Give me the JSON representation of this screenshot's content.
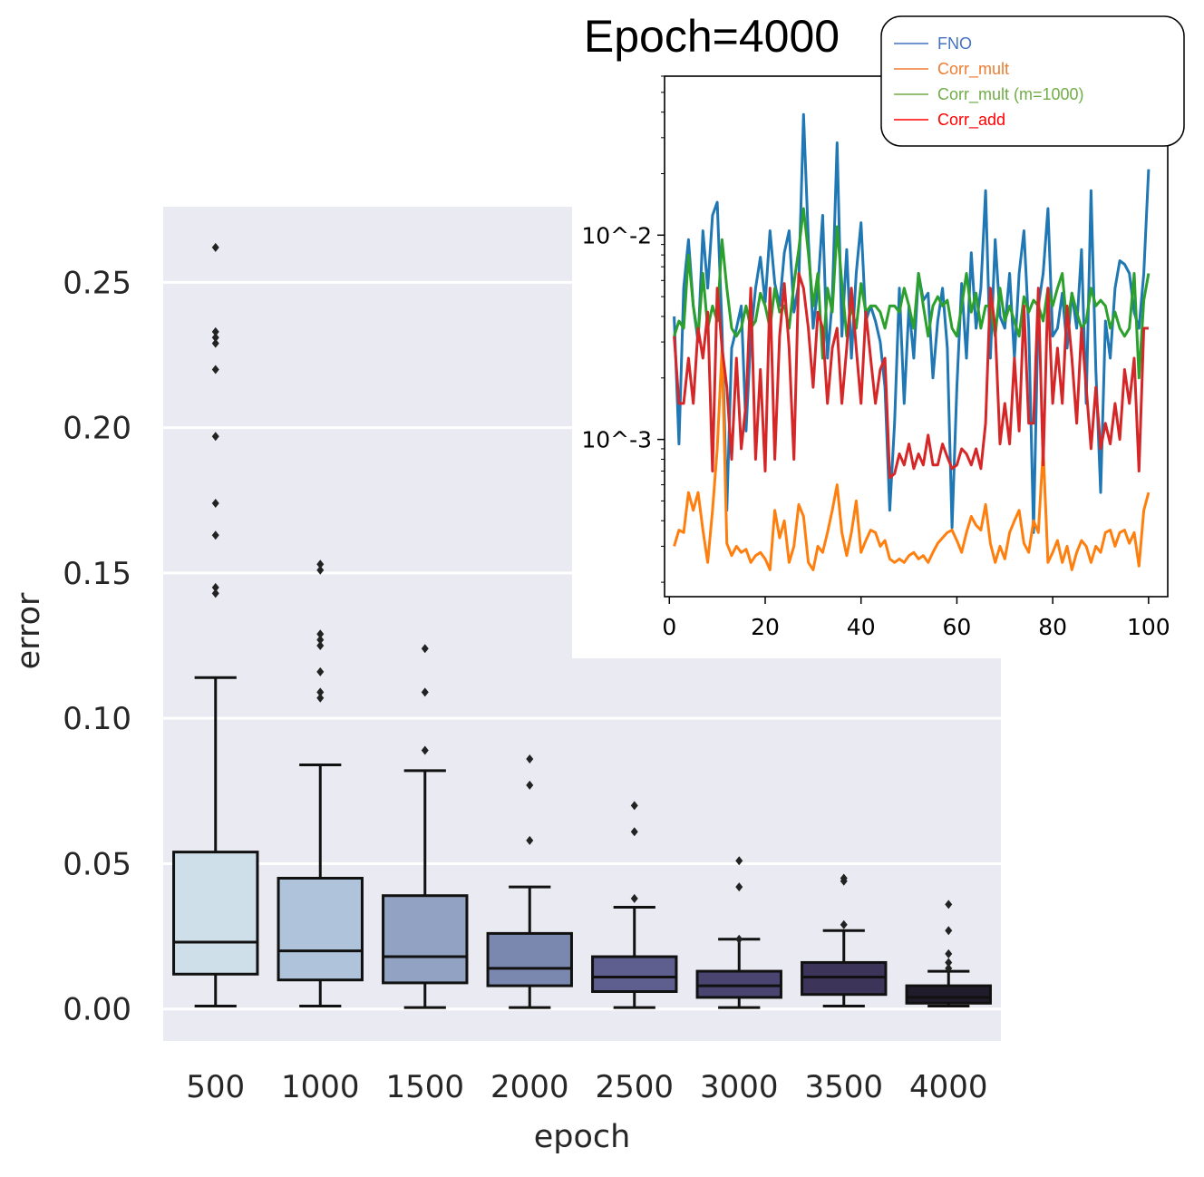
{
  "chart_data": [
    {
      "type": "box",
      "xlabel": "epoch",
      "ylabel": "error",
      "categories": [
        "500",
        "1000",
        "1500",
        "2000",
        "2500",
        "3000",
        "3500",
        "4000"
      ],
      "yticks": [
        "0.00",
        "0.05",
        "0.10",
        "0.15",
        "0.20",
        "0.25"
      ],
      "ylim": [
        -0.011,
        0.276
      ],
      "grid": true,
      "palette": [
        "#cfdfea",
        "#afc4da",
        "#92a2c2",
        "#7a87af",
        "#5e5f8f",
        "#494570",
        "#3d3559",
        "#201c2b"
      ],
      "boxes": [
        {
          "whislo": 0.001,
          "q1": 0.012,
          "med": 0.023,
          "q3": 0.054,
          "whishi": 0.114,
          "fliers": [
            0.143,
            0.145,
            0.163,
            0.174,
            0.197,
            0.22,
            0.229,
            0.231,
            0.233,
            0.262
          ]
        },
        {
          "whislo": 0.001,
          "q1": 0.01,
          "med": 0.02,
          "q3": 0.045,
          "whishi": 0.084,
          "fliers": [
            0.107,
            0.109,
            0.116,
            0.125,
            0.127,
            0.129,
            0.151,
            0.153
          ]
        },
        {
          "whislo": 0.0005,
          "q1": 0.009,
          "med": 0.018,
          "q3": 0.039,
          "whishi": 0.082,
          "fliers": [
            0.089,
            0.109,
            0.124
          ]
        },
        {
          "whislo": 0.0005,
          "q1": 0.008,
          "med": 0.014,
          "q3": 0.026,
          "whishi": 0.042,
          "fliers": [
            0.058,
            0.077,
            0.086
          ]
        },
        {
          "whislo": 0.0005,
          "q1": 0.006,
          "med": 0.011,
          "q3": 0.018,
          "whishi": 0.035,
          "fliers": [
            0.038,
            0.061,
            0.07
          ]
        },
        {
          "whislo": 0.0005,
          "q1": 0.004,
          "med": 0.008,
          "q3": 0.013,
          "whishi": 0.024,
          "fliers": [
            0.024,
            0.042,
            0.051
          ]
        },
        {
          "whislo": 0.001,
          "q1": 0.005,
          "med": 0.011,
          "q3": 0.016,
          "whishi": 0.027,
          "fliers": [
            0.029,
            0.044,
            0.045
          ]
        },
        {
          "whislo": 0.001,
          "q1": 0.002,
          "med": 0.004,
          "q3": 0.008,
          "whishi": 0.013,
          "fliers": [
            0.014,
            0.016,
            0.019,
            0.027,
            0.036
          ]
        }
      ]
    },
    {
      "type": "line",
      "title": "Epoch=4000",
      "yscale": "log",
      "xlim": [
        -1,
        104
      ],
      "ylim": [
        0.00017,
        0.06
      ],
      "xticks": [
        "0",
        "20",
        "40",
        "60",
        "80",
        "100"
      ],
      "yticks": [
        "10^-3",
        "10^-2"
      ],
      "legend_position": "top-right",
      "series": [
        {
          "name": "FNO",
          "color": "#1f77b4",
          "legend_text_color": "#4472c4",
          "x": [
            1,
            2,
            3,
            4,
            5,
            6,
            7,
            8,
            9,
            10,
            11,
            12,
            13,
            14,
            15,
            16,
            17,
            18,
            19,
            20,
            21,
            22,
            23,
            24,
            25,
            26,
            27,
            28,
            29,
            30,
            31,
            32,
            33,
            34,
            35,
            36,
            37,
            38,
            39,
            40,
            41,
            42,
            43,
            44,
            45,
            46,
            47,
            48,
            49,
            50,
            51,
            52,
            53,
            54,
            55,
            56,
            57,
            58,
            59,
            60,
            61,
            62,
            63,
            64,
            65,
            66,
            67,
            68,
            69,
            70,
            71,
            72,
            73,
            74,
            75,
            76,
            77,
            78,
            79,
            80,
            81,
            82,
            83,
            84,
            85,
            86,
            87,
            88,
            89,
            90,
            91,
            92,
            93,
            94,
            95,
            96,
            97,
            98,
            99,
            100
          ],
          "y": [
            0.004,
            0.00095,
            0.0055,
            0.0095,
            0.0045,
            0.003,
            0.0105,
            0.0055,
            0.0125,
            0.0145,
            0.0035,
            0.00045,
            0.0028,
            0.0035,
            0.0045,
            0.0011,
            0.0032,
            0.0055,
            0.0078,
            0.0047,
            0.0105,
            0.0058,
            0.0045,
            0.0082,
            0.0105,
            0.0042,
            0.0058,
            0.039,
            0.0095,
            0.0035,
            0.0055,
            0.0125,
            0.0025,
            0.0048,
            0.0283,
            0.0032,
            0.0085,
            0.0025,
            0.0065,
            0.0115,
            0.0038,
            0.0045,
            0.0038,
            0.003,
            0.0018,
            0.00045,
            0.0012,
            0.0055,
            0.0015,
            0.0045,
            0.0025,
            0.0065,
            0.0048,
            0.0052,
            0.002,
            0.0038,
            0.0055,
            0.0028,
            0.00037,
            0.0018,
            0.0058,
            0.0025,
            0.0082,
            0.0035,
            0.0055,
            0.0165,
            0.0025,
            0.0095,
            0.004,
            0.0035,
            0.0065,
            0.0025,
            0.0065,
            0.0105,
            0.0035,
            0.00035,
            0.0045,
            0.0065,
            0.0135,
            0.0032,
            0.0035,
            0.0052,
            0.0028,
            0.0052,
            0.0035,
            0.0085,
            0.0015,
            0.0165,
            0.0022,
            0.00055,
            0.0038,
            0.0025,
            0.0055,
            0.0075,
            0.0072,
            0.0065,
            0.0042,
            0.0035,
            0.0065,
            0.021
          ]
        },
        {
          "name": "Corr_mult",
          "color": "#ff7f0e",
          "legend_text_color": "#ed7d31",
          "x": [
            1,
            2,
            3,
            4,
            5,
            6,
            7,
            8,
            9,
            10,
            11,
            12,
            13,
            14,
            15,
            16,
            17,
            18,
            19,
            20,
            21,
            22,
            23,
            24,
            25,
            26,
            27,
            28,
            29,
            30,
            31,
            32,
            33,
            34,
            35,
            36,
            37,
            38,
            39,
            40,
            41,
            42,
            43,
            44,
            45,
            46,
            47,
            48,
            49,
            50,
            51,
            52,
            53,
            54,
            55,
            56,
            57,
            58,
            59,
            60,
            61,
            62,
            63,
            64,
            65,
            66,
            67,
            68,
            69,
            70,
            71,
            72,
            73,
            74,
            75,
            76,
            77,
            78,
            79,
            80,
            81,
            82,
            83,
            84,
            85,
            86,
            87,
            88,
            89,
            90,
            91,
            92,
            93,
            94,
            95,
            96,
            97,
            98,
            99,
            100
          ],
          "y": [
            0.0003,
            0.00036,
            0.00035,
            0.00055,
            0.00045,
            0.00055,
            0.00036,
            0.00025,
            0.00045,
            0.0009,
            0.0028,
            0.00031,
            0.00027,
            0.0003,
            0.00028,
            0.00029,
            0.00025,
            0.00027,
            0.00028,
            0.00026,
            0.00023,
            0.00045,
            0.00033,
            0.0004,
            0.00025,
            0.0003,
            0.00048,
            0.00042,
            0.00025,
            0.00023,
            0.0003,
            0.00028,
            0.00035,
            0.00045,
            0.0006,
            0.00035,
            0.00027,
            0.00035,
            0.0005,
            0.00028,
            0.00032,
            0.00036,
            0.00035,
            0.0003,
            0.00032,
            0.00026,
            0.00025,
            0.00026,
            0.00025,
            0.00027,
            0.00028,
            0.00026,
            0.00027,
            0.00025,
            0.00028,
            0.00031,
            0.00033,
            0.00035,
            0.00036,
            0.00032,
            0.00028,
            0.00035,
            0.00042,
            0.00038,
            0.00036,
            0.00048,
            0.00031,
            0.00025,
            0.0003,
            0.00026,
            0.00035,
            0.0004,
            0.00045,
            0.00031,
            0.00028,
            0.0004,
            0.00035,
            0.0009,
            0.00025,
            0.00028,
            0.00032,
            0.00025,
            0.0003,
            0.00023,
            0.00028,
            0.00032,
            0.0003,
            0.00025,
            0.0003,
            0.00028,
            0.00035,
            0.00036,
            0.0003,
            0.00035,
            0.00036,
            0.00031,
            0.00035,
            0.00024,
            0.00045,
            0.00055
          ]
        },
        {
          "name": "Corr_mult (m=1000)",
          "color": "#2ca02c",
          "legend_text_color": "#70ad47",
          "x": [
            1,
            2,
            3,
            4,
            5,
            6,
            7,
            8,
            9,
            10,
            11,
            12,
            13,
            14,
            15,
            16,
            17,
            18,
            19,
            20,
            21,
            22,
            23,
            24,
            25,
            26,
            27,
            28,
            29,
            30,
            31,
            32,
            33,
            34,
            35,
            36,
            37,
            38,
            39,
            40,
            41,
            42,
            43,
            44,
            45,
            46,
            47,
            48,
            49,
            50,
            51,
            52,
            53,
            54,
            55,
            56,
            57,
            58,
            59,
            60,
            61,
            62,
            63,
            64,
            65,
            66,
            67,
            68,
            69,
            70,
            71,
            72,
            73,
            74,
            75,
            76,
            77,
            78,
            79,
            80,
            81,
            82,
            83,
            84,
            85,
            86,
            87,
            88,
            89,
            90,
            91,
            92,
            93,
            94,
            95,
            96,
            97,
            98,
            99,
            100
          ],
          "y": [
            0.0032,
            0.0038,
            0.0035,
            0.008,
            0.0045,
            0.0032,
            0.0065,
            0.0035,
            0.0045,
            0.0038,
            0.0095,
            0.0055,
            0.0035,
            0.0032,
            0.0035,
            0.0045,
            0.0035,
            0.0038,
            0.0052,
            0.0045,
            0.0035,
            0.0055,
            0.0042,
            0.0045,
            0.0035,
            0.0058,
            0.0085,
            0.0135,
            0.0082,
            0.0045,
            0.0065,
            0.0025,
            0.0055,
            0.0042,
            0.011,
            0.0058,
            0.0032,
            0.0045,
            0.0035,
            0.0058,
            0.0042,
            0.0045,
            0.0045,
            0.0042,
            0.0035,
            0.0045,
            0.0045,
            0.0042,
            0.0055,
            0.0045,
            0.0035,
            0.0065,
            0.0045,
            0.0032,
            0.0045,
            0.005,
            0.0045,
            0.0048,
            0.0035,
            0.0032,
            0.0045,
            0.0065,
            0.0042,
            0.0052,
            0.0035,
            0.0045,
            0.0045,
            0.0032,
            0.0055,
            0.0038,
            0.0045,
            0.0038,
            0.0032,
            0.005,
            0.0042,
            0.0048,
            0.0045,
            0.0038,
            0.0055,
            0.0045,
            0.0055,
            0.0065,
            0.0035,
            0.0052,
            0.0042,
            0.0035,
            0.0038,
            0.0055,
            0.0045,
            0.0048,
            0.0045,
            0.0035,
            0.0042,
            0.0035,
            0.0032,
            0.0035,
            0.0065,
            0.002,
            0.0048,
            0.0065
          ]
        },
        {
          "name": "Corr_add",
          "color": "#d62728",
          "legend_text_color": "#ff0000",
          "x": [
            1,
            2,
            3,
            4,
            5,
            6,
            7,
            8,
            9,
            10,
            11,
            12,
            13,
            14,
            15,
            16,
            17,
            18,
            19,
            20,
            21,
            22,
            23,
            24,
            25,
            26,
            27,
            28,
            29,
            30,
            31,
            32,
            33,
            34,
            35,
            36,
            37,
            38,
            39,
            40,
            41,
            42,
            43,
            44,
            45,
            46,
            47,
            48,
            49,
            50,
            51,
            52,
            53,
            54,
            55,
            56,
            57,
            58,
            59,
            60,
            61,
            62,
            63,
            64,
            65,
            66,
            67,
            68,
            69,
            70,
            71,
            72,
            73,
            74,
            75,
            76,
            77,
            78,
            79,
            80,
            81,
            82,
            83,
            84,
            85,
            86,
            87,
            88,
            89,
            90,
            91,
            92,
            93,
            94,
            95,
            96,
            97,
            98,
            99,
            100
          ],
          "y": [
            0.0032,
            0.0015,
            0.0015,
            0.0025,
            0.0015,
            0.0035,
            0.0025,
            0.0042,
            0.0007,
            0.0055,
            0.0028,
            0.0018,
            0.0008,
            0.0025,
            0.0009,
            0.0015,
            0.0055,
            0.0008,
            0.0022,
            0.0007,
            0.0055,
            0.0008,
            0.0032,
            0.0058,
            0.0028,
            0.0008,
            0.0065,
            0.0055,
            0.0035,
            0.0018,
            0.0042,
            0.0035,
            0.0015,
            0.0028,
            0.0035,
            0.0015,
            0.0028,
            0.0055,
            0.0028,
            0.0015,
            0.0042,
            0.0025,
            0.0015,
            0.0022,
            0.0025,
            0.00065,
            0.00068,
            0.00085,
            0.00075,
            0.00095,
            0.00072,
            0.00085,
            0.00075,
            0.00105,
            0.00075,
            0.00075,
            0.00095,
            0.00082,
            0.00072,
            0.00075,
            0.0009,
            0.00085,
            0.00075,
            0.0009,
            0.00072,
            0.0012,
            0.0055,
            0.0035,
            0.00095,
            0.0015,
            0.00095,
            0.0025,
            0.0011,
            0.0045,
            0.0012,
            0.0012,
            0.0055,
            0.00075,
            0.0055,
            0.0015,
            0.0028,
            0.0015,
            0.0045,
            0.0025,
            0.0012,
            0.0035,
            0.0018,
            0.0009,
            0.0018,
            0.0009,
            0.0012,
            0.00095,
            0.0015,
            0.001,
            0.0022,
            0.0015,
            0.0025,
            0.0007,
            0.0035,
            0.0035
          ]
        }
      ]
    }
  ]
}
